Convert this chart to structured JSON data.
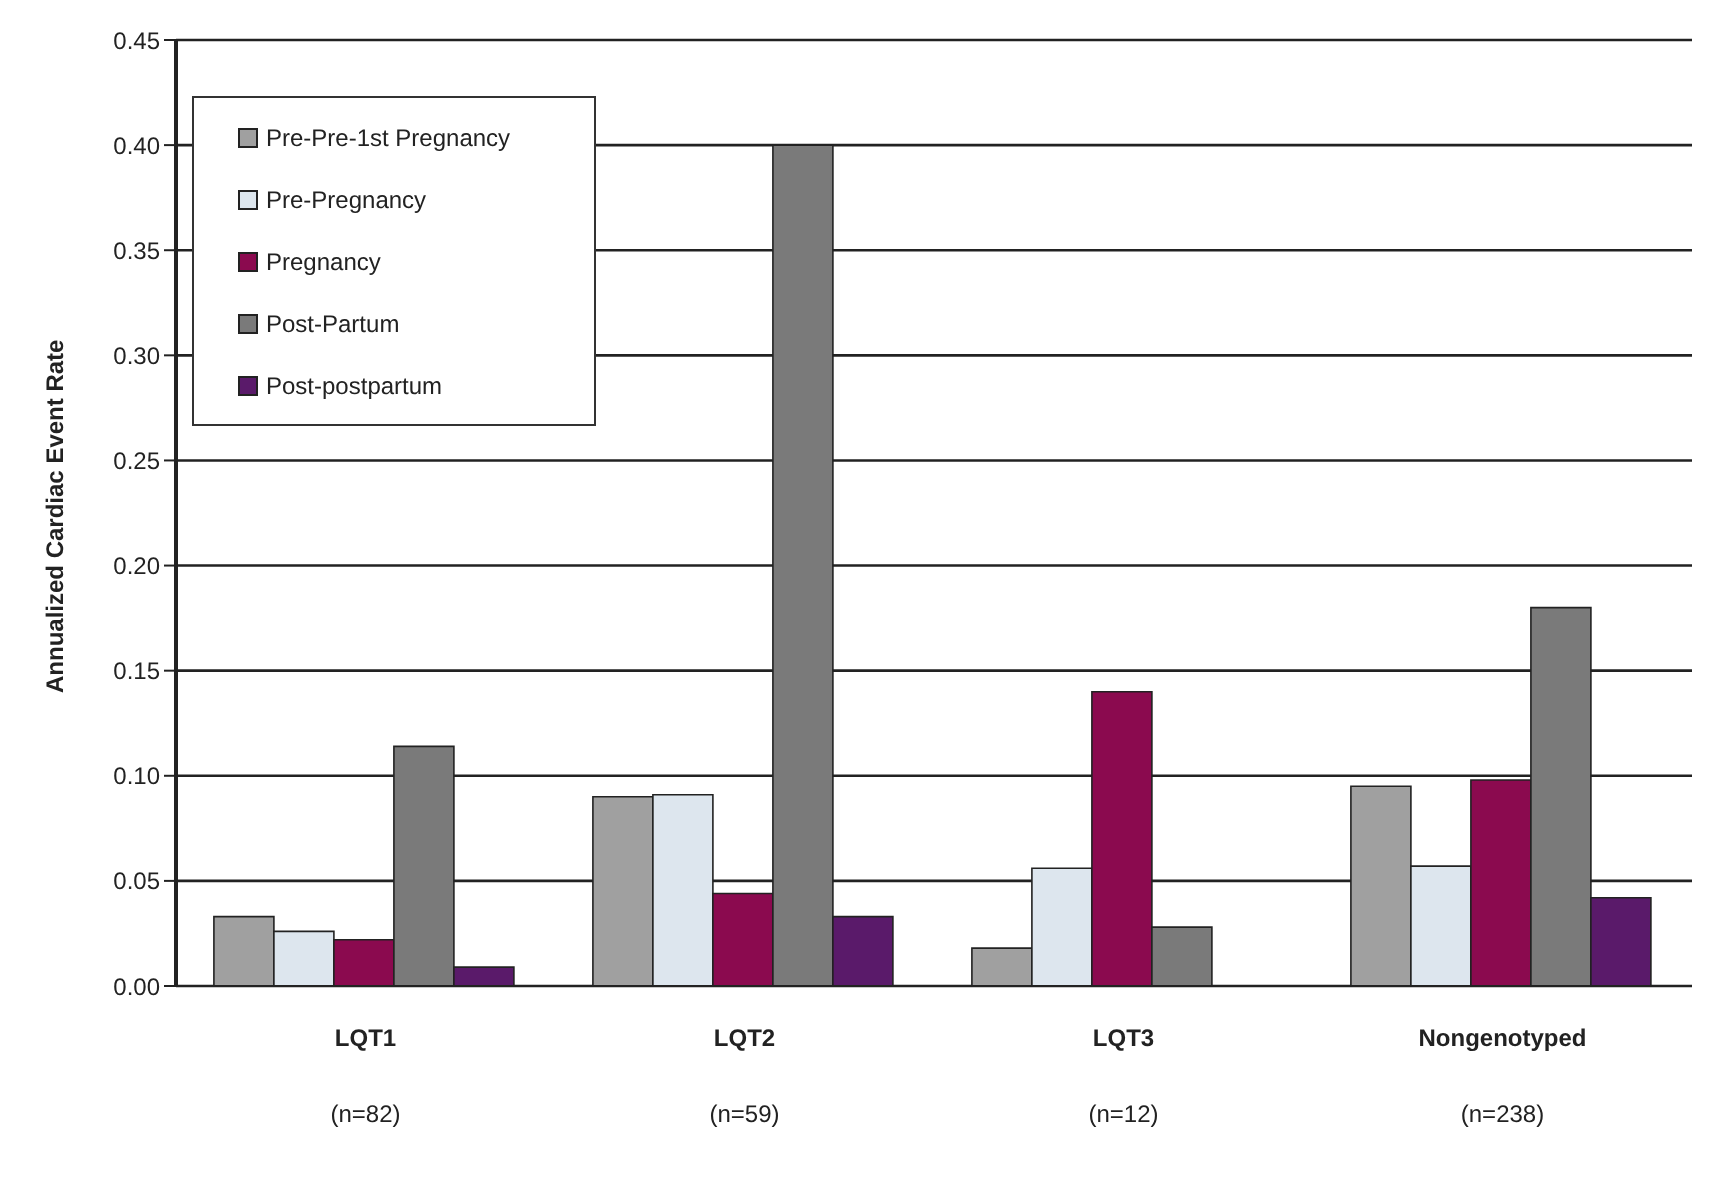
{
  "chart_data": {
    "type": "bar",
    "ylabel": "Annualized Cardiac Event Rate",
    "categories": [
      "LQT1\n(n=82)",
      "LQT2\n(n=59)",
      "LQT3\n(n=12)",
      "Nongenotyped\n(n=238)"
    ],
    "series": [
      {
        "name": "Pre-Pre-1st Pregnancy",
        "color": "#a0a0a0",
        "values": [
          0.033,
          0.09,
          0.018,
          0.095
        ]
      },
      {
        "name": "Pre-Pregnancy",
        "color": "#dde6ee",
        "values": [
          0.026,
          0.091,
          0.056,
          0.057
        ]
      },
      {
        "name": "Pregnancy",
        "color": "#8b0a4f",
        "values": [
          0.022,
          0.044,
          0.14,
          0.098
        ]
      },
      {
        "name": "Post-Partum",
        "color": "#7a7a7a",
        "values": [
          0.114,
          0.4,
          0.028,
          0.18
        ]
      },
      {
        "name": "Post-postpartum",
        "color": "#5a1a6a",
        "values": [
          0.009,
          0.033,
          null,
          0.042
        ]
      }
    ],
    "ylim": [
      0,
      0.45
    ],
    "yticks": [
      {
        "value": 0,
        "label": "0.00"
      },
      {
        "value": 0.05,
        "label": "0.05"
      },
      {
        "value": 0.1,
        "label": "0.10"
      },
      {
        "value": 0.15,
        "label": "0.15"
      },
      {
        "value": 0.2,
        "label": "0.20"
      },
      {
        "value": 0.25,
        "label": "0.25"
      },
      {
        "value": 0.3,
        "label": "0.30"
      },
      {
        "value": 0.35,
        "label": "0.35"
      },
      {
        "value": 0.4,
        "label": "0.40"
      },
      {
        "value": 0.45,
        "label": "0.45"
      }
    ],
    "grid": "y",
    "legend": "top left"
  }
}
